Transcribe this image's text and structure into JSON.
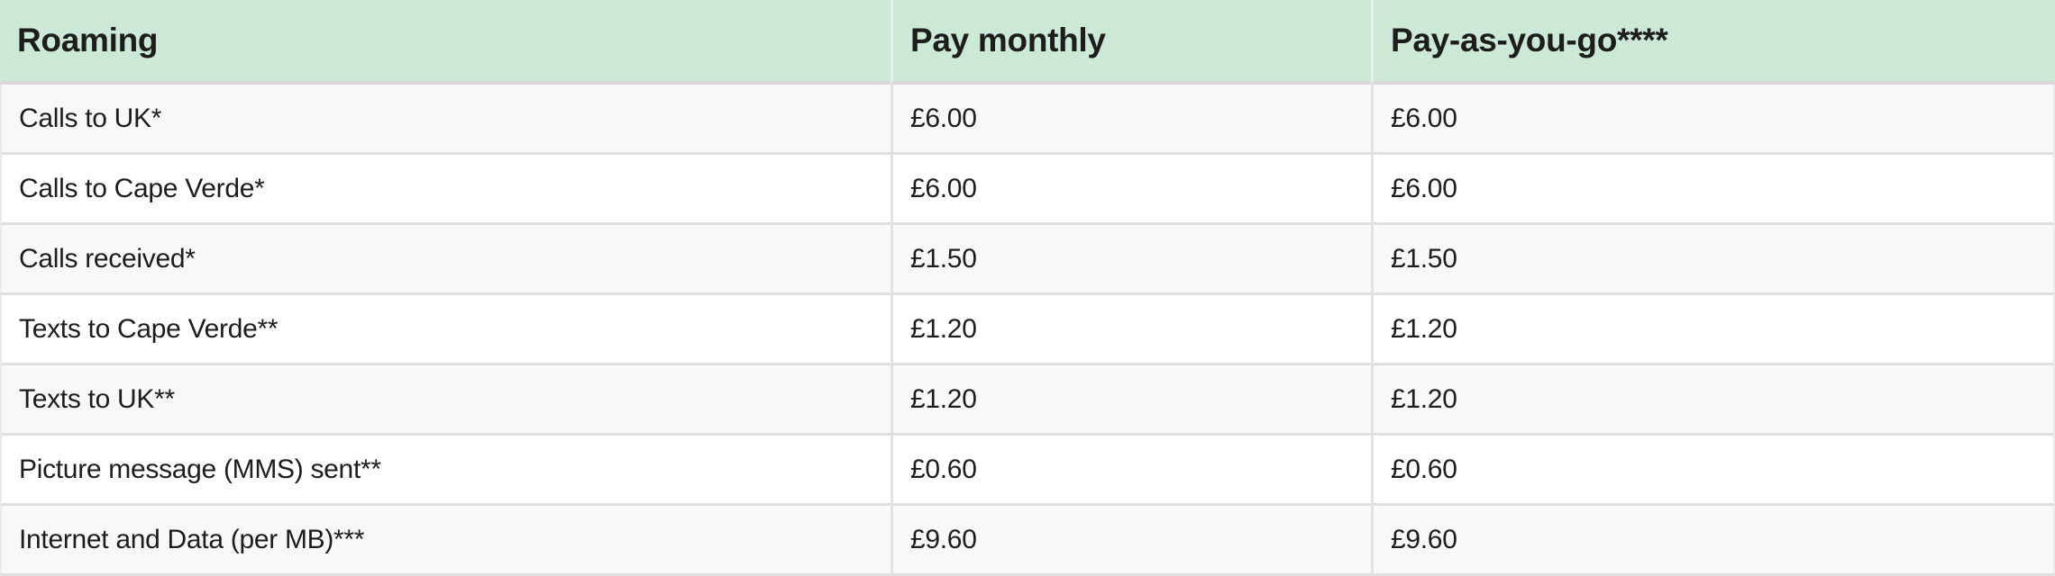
{
  "colors": {
    "header_bg": "#cce8d7",
    "header_divider": "#e1efe8",
    "row_alt_bg": "#f8f8f8",
    "row_bg": "#ffffff",
    "grid_line": "#dfdfdf",
    "header_separator": "#d9d9d9",
    "text": "#1d1d1d"
  },
  "table": {
    "columns": [
      "Roaming",
      "Pay monthly",
      "Pay-as-you-go****"
    ],
    "rows": [
      [
        "Calls to UK*",
        "£6.00",
        "£6.00"
      ],
      [
        "Calls to Cape Verde*",
        "£6.00",
        "£6.00"
      ],
      [
        "Calls received*",
        "£1.50",
        "£1.50"
      ],
      [
        "Texts to Cape Verde**",
        "£1.20",
        "£1.20"
      ],
      [
        "Texts to UK**",
        "£1.20",
        "£1.20"
      ],
      [
        "Picture message (MMS) sent**",
        "£0.60",
        "£0.60"
      ],
      [
        "Internet and Data (per MB)***",
        "£9.60",
        "£9.60"
      ]
    ]
  },
  "chart_data": {
    "type": "table",
    "title": "Roaming",
    "columns": [
      "Roaming",
      "Pay monthly",
      "Pay-as-you-go****"
    ],
    "rows": [
      [
        "Calls to UK*",
        "£6.00",
        "£6.00"
      ],
      [
        "Calls to Cape Verde*",
        "£6.00",
        "£6.00"
      ],
      [
        "Calls received*",
        "£1.50",
        "£1.50"
      ],
      [
        "Texts to Cape Verde**",
        "£1.20",
        "£1.20"
      ],
      [
        "Texts to UK**",
        "£1.20",
        "£1.20"
      ],
      [
        "Picture message (MMS) sent**",
        "£0.60",
        "£0.60"
      ],
      [
        "Internet and Data (per MB)***",
        "£9.60",
        "£9.60"
      ]
    ],
    "layout_hints": {
      "header_fill": "#cce8d7",
      "zebra_striping": true,
      "grid": "horizontal-and-vertical",
      "currency": "GBP"
    }
  }
}
